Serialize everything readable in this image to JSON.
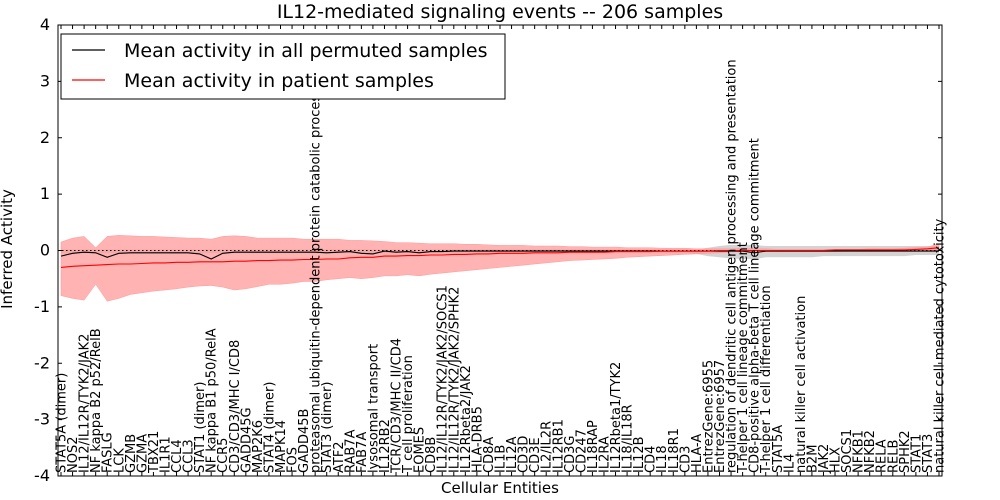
{
  "chart_data": {
    "type": "line",
    "title": "IL12-mediated signaling events -- 206 samples",
    "xlabel": "Cellular Entities",
    "ylabel": "Inferred Activity",
    "ylim": [
      -4,
      4
    ],
    "yticks": [
      -4,
      -3,
      -2,
      -1,
      0,
      1,
      2,
      3,
      4
    ],
    "grid": false,
    "legend_position": "top-left",
    "colors": {
      "permuted": "#000000",
      "patient": "#ff0000",
      "patient_band": "#ff9a9a",
      "permuted_band": "#c8c8c8",
      "zero_line": "#000000"
    },
    "categories": [
      "STAT5A (dimer)",
      "NOS2",
      "IL12/IL12R/TYK2/JAK2",
      "NF kappa B2 p52/RelB",
      "FASLG",
      "LCK",
      "GZMB",
      "GZMA",
      "TBX21",
      "IL1R1",
      "CCL4",
      "CCL3",
      "STAT1 (dimer)",
      "NF kappa B1 p50/RelA",
      "CCR5",
      "CD3/CD3/MHC I/CD8",
      "GADD45G",
      "MAP2K6",
      "STAT4 (dimer)",
      "MAPK14",
      "FOS",
      "GADD45B",
      "proteasomal ubiquitin-dependent protein catabolic process",
      "STAT3 (dimer)",
      "ATF2",
      "RAB7A",
      "FAB7A",
      "lysosomal transport",
      "IL12RB2",
      "TCR/CD3/MHC II/CD4",
      "T cell proliferation",
      "EOMES",
      "CD8B",
      "IL12/IL12R/TYK2/JAK2/SOCS1",
      "IL12/IL12R/TYK2/JAK2/SPHK2",
      "IL12Rbeta2/JAK2",
      "HLA-DRB5",
      "CD8A",
      "IL1B",
      "IL12A",
      "CD3D",
      "CD3E",
      "IL2/IL2R",
      "IL12RB1",
      "CD3G",
      "CD247",
      "IL18RAP",
      "IL2RA",
      "IL12Rbeta1/TYK2",
      "IL18/IL18R",
      "IL12B",
      "CD4",
      "IL18",
      "IL18R1",
      "CD3",
      "HLA-A",
      "EntrezGene:6955",
      "EntrezGene:6957",
      "regulation of dendritic cell antigen processing and presentation",
      "T-helper 1 cell lineage commitment",
      "CD8-positive alpha-beta T cell lineage commitment",
      "T-helper 1 cell differentiation",
      "STAT5A",
      "IL4",
      "natural killer cell activation",
      "B2M",
      "JAK2",
      "HLX",
      "SOCS1",
      "NFKB1",
      "NFKB2",
      "RELA",
      "RELB",
      "SPHK2",
      "STAT1",
      "STAT3",
      "natural killer cell mediated cytotoxicity"
    ],
    "series": [
      {
        "name": "Mean activity in all permuted samples",
        "values": [
          -0.1,
          -0.05,
          -0.03,
          -0.04,
          -0.12,
          -0.05,
          -0.04,
          -0.04,
          -0.04,
          -0.04,
          -0.04,
          -0.04,
          -0.06,
          -0.15,
          -0.05,
          -0.03,
          -0.03,
          -0.03,
          -0.03,
          -0.03,
          -0.03,
          -0.03,
          -0.03,
          -0.04,
          -0.03,
          -0.02,
          -0.05,
          -0.06,
          -0.01,
          -0.03,
          -0.02,
          -0.04,
          -0.02,
          -0.02,
          -0.01,
          -0.01,
          -0.01,
          -0.01,
          -0.01,
          -0.01,
          -0.01,
          -0.01,
          -0.01,
          -0.01,
          -0.01,
          -0.01,
          -0.01,
          -0.01,
          -0.01,
          -0.01,
          -0.01,
          -0.01,
          -0.01,
          -0.01,
          -0.01,
          -0.01,
          -0.01,
          -0.01,
          -0.01,
          -0.01,
          -0.04,
          -0.01,
          -0.01,
          -0.01,
          -0.01,
          -0.01,
          -0.01,
          -0.01,
          -0.01,
          -0.01,
          -0.01,
          -0.01,
          -0.01,
          -0.01,
          -0.01,
          -0.01,
          -0.01
        ]
      },
      {
        "name": "Mean activity in patient samples",
        "values": [
          -0.3,
          -0.28,
          -0.27,
          -0.26,
          -0.25,
          -0.24,
          -0.24,
          -0.23,
          -0.22,
          -0.22,
          -0.21,
          -0.21,
          -0.2,
          -0.2,
          -0.2,
          -0.19,
          -0.19,
          -0.18,
          -0.18,
          -0.17,
          -0.17,
          -0.16,
          -0.16,
          -0.15,
          -0.15,
          -0.13,
          -0.12,
          -0.12,
          -0.1,
          -0.1,
          -0.09,
          -0.09,
          -0.08,
          -0.08,
          -0.07,
          -0.07,
          -0.06,
          -0.06,
          -0.05,
          -0.05,
          -0.05,
          -0.04,
          -0.04,
          -0.04,
          -0.03,
          -0.03,
          -0.03,
          -0.03,
          -0.02,
          -0.02,
          -0.02,
          -0.02,
          -0.01,
          -0.01,
          -0.01,
          -0.01,
          -0.01,
          0.0,
          0.0,
          0.0,
          0.0,
          0.0,
          0.0,
          0.0,
          0.0,
          0.0,
          0.0,
          0.01,
          0.01,
          0.01,
          0.01,
          0.01,
          0.01,
          0.01,
          0.02,
          0.03,
          0.05
        ],
        "band_upper": [
          0.15,
          0.22,
          0.25,
          0.05,
          0.25,
          0.27,
          0.26,
          0.25,
          0.25,
          0.24,
          0.23,
          0.22,
          0.22,
          0.2,
          0.25,
          0.26,
          0.25,
          0.22,
          0.22,
          0.22,
          0.22,
          0.2,
          0.2,
          0.2,
          0.2,
          0.18,
          0.18,
          0.17,
          0.16,
          0.14,
          0.14,
          0.13,
          0.12,
          0.12,
          0.12,
          0.11,
          0.11,
          0.1,
          0.09,
          0.09,
          0.09,
          0.08,
          0.08,
          0.08,
          0.07,
          0.07,
          0.06,
          0.06,
          0.06,
          0.05,
          0.05,
          0.05,
          0.04,
          0.04,
          0.04,
          0.03,
          0.03,
          0.03,
          0.03,
          0.04,
          0.03,
          0.03,
          0.02,
          0.02,
          0.02,
          0.02,
          0.02,
          0.02,
          0.02,
          0.02,
          0.03,
          0.03,
          0.03,
          0.04,
          0.05,
          0.06,
          0.12
        ],
        "band_lower": [
          -0.8,
          -0.85,
          -0.88,
          -0.6,
          -0.9,
          -0.85,
          -0.78,
          -0.75,
          -0.72,
          -0.7,
          -0.68,
          -0.65,
          -0.63,
          -0.62,
          -0.65,
          -0.7,
          -0.68,
          -0.64,
          -0.6,
          -0.6,
          -0.58,
          -0.55,
          -0.55,
          -0.52,
          -0.5,
          -0.48,
          -0.5,
          -0.48,
          -0.45,
          -0.45,
          -0.43,
          -0.45,
          -0.42,
          -0.4,
          -0.38,
          -0.36,
          -0.34,
          -0.32,
          -0.3,
          -0.28,
          -0.26,
          -0.24,
          -0.22,
          -0.2,
          -0.18,
          -0.17,
          -0.16,
          -0.15,
          -0.14,
          -0.12,
          -0.11,
          -0.1,
          -0.09,
          -0.08,
          -0.07,
          -0.06,
          -0.05,
          -0.04,
          -0.03,
          -0.02,
          -0.02,
          -0.02,
          -0.02,
          -0.02,
          -0.02,
          -0.02,
          -0.02,
          -0.02,
          -0.01,
          -0.01,
          -0.01,
          -0.01,
          -0.01,
          -0.01,
          -0.01,
          -0.01,
          -0.01
        ]
      }
    ],
    "permuted_band_upper": [
      0.02,
      0.02,
      0.02,
      0.02,
      0.02,
      0.02,
      0.02,
      0.02,
      0.02,
      0.02,
      0.02,
      0.02,
      0.02,
      0.02,
      0.02,
      0.02,
      0.02,
      0.02,
      0.02,
      0.02,
      0.02,
      0.02,
      0.02,
      0.02,
      0.02,
      0.02,
      0.02,
      0.02,
      0.02,
      0.02,
      0.02,
      0.02,
      0.02,
      0.02,
      0.02,
      0.02,
      0.02,
      0.02,
      0.02,
      0.02,
      0.02,
      0.02,
      0.02,
      0.02,
      0.02,
      0.02,
      0.02,
      0.02,
      0.02,
      0.02,
      0.02,
      0.02,
      0.02,
      0.02,
      0.02,
      0.02,
      0.05,
      0.08,
      0.1,
      0.1,
      0.1,
      0.08,
      0.08,
      0.08,
      0.08,
      0.08,
      0.08,
      0.08,
      0.08,
      0.08,
      0.08,
      0.08,
      0.08,
      0.08,
      0.08,
      0.08,
      0.08
    ],
    "permuted_band_lower": [
      -0.05,
      -0.05,
      -0.05,
      -0.05,
      -0.05,
      -0.05,
      -0.05,
      -0.05,
      -0.05,
      -0.05,
      -0.05,
      -0.05,
      -0.05,
      -0.05,
      -0.05,
      -0.05,
      -0.05,
      -0.05,
      -0.05,
      -0.05,
      -0.05,
      -0.05,
      -0.05,
      -0.05,
      -0.05,
      -0.05,
      -0.05,
      -0.05,
      -0.05,
      -0.05,
      -0.05,
      -0.05,
      -0.05,
      -0.05,
      -0.05,
      -0.05,
      -0.05,
      -0.05,
      -0.05,
      -0.05,
      -0.05,
      -0.05,
      -0.05,
      -0.05,
      -0.05,
      -0.05,
      -0.05,
      -0.05,
      -0.05,
      -0.05,
      -0.05,
      -0.05,
      -0.05,
      -0.05,
      -0.05,
      -0.06,
      -0.1,
      -0.12,
      -0.14,
      -0.15,
      -0.15,
      -0.12,
      -0.12,
      -0.12,
      -0.12,
      -0.12,
      -0.1,
      -0.1,
      -0.1,
      -0.1,
      -0.1,
      -0.1,
      -0.1,
      -0.1,
      -0.08,
      -0.08,
      -0.08
    ]
  }
}
